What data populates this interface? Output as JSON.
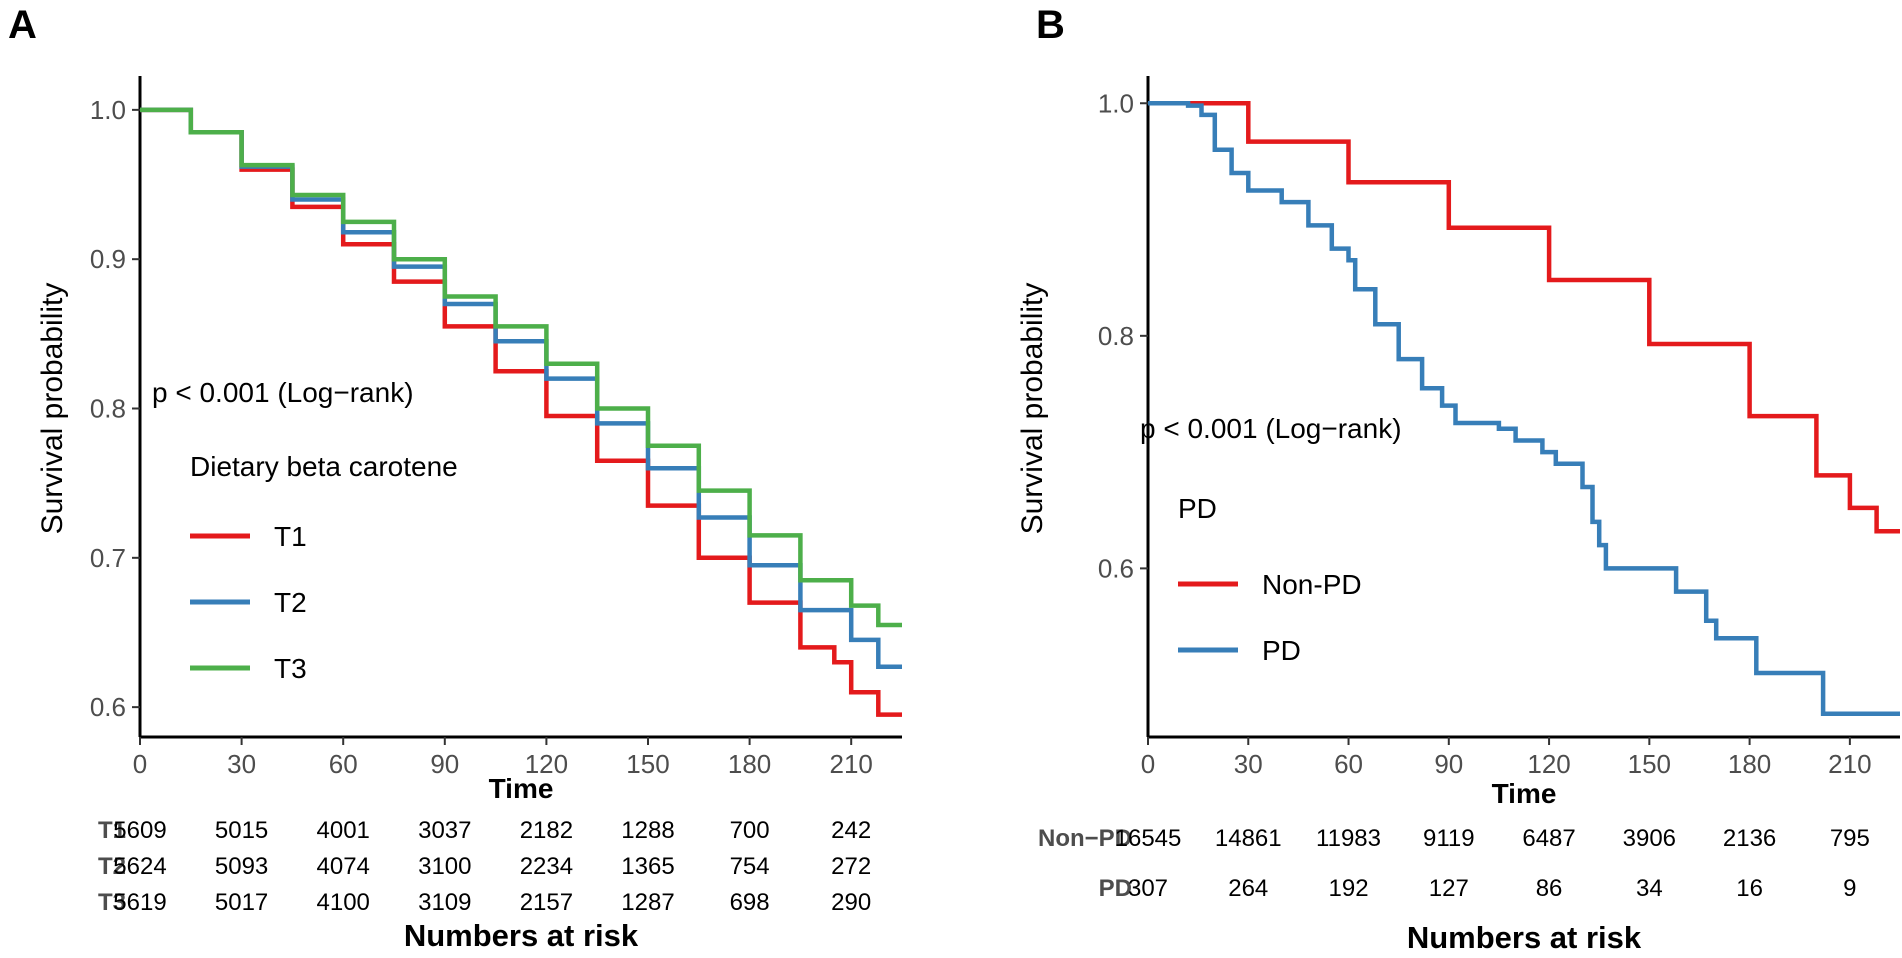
{
  "chart_data": [
    {
      "panel_label": "A",
      "type": "line",
      "subtype": "kaplan-meier",
      "ylabel": "Survival probability",
      "xlabel": "Time",
      "xlim": [
        0,
        225
      ],
      "ylim": [
        0.58,
        1.02
      ],
      "x_ticks": [
        0,
        30,
        60,
        90,
        120,
        150,
        180,
        210
      ],
      "y_ticks": [
        0.6,
        0.7,
        0.8,
        0.9,
        1.0
      ],
      "y_tick_labels": [
        "0.6",
        "0.7",
        "0.8",
        "0.9",
        "1.0"
      ],
      "grid": false,
      "annotation": "p < 0.001 (Log−rank)",
      "legend_title": "Dietary beta carotene",
      "legend_position": "inside-left",
      "series": [
        {
          "name": "T1",
          "color": "#e41a1c",
          "points": [
            [
              0,
              1.0
            ],
            [
              15,
              0.985
            ],
            [
              30,
              0.96
            ],
            [
              45,
              0.935
            ],
            [
              60,
              0.91
            ],
            [
              75,
              0.885
            ],
            [
              90,
              0.855
            ],
            [
              105,
              0.825
            ],
            [
              120,
              0.795
            ],
            [
              135,
              0.765
            ],
            [
              150,
              0.735
            ],
            [
              165,
              0.7
            ],
            [
              180,
              0.67
            ],
            [
              195,
              0.64
            ],
            [
              205,
              0.63
            ],
            [
              210,
              0.61
            ],
            [
              218,
              0.595
            ],
            [
              225,
              0.595
            ]
          ]
        },
        {
          "name": "T2",
          "color": "#377eb8",
          "points": [
            [
              0,
              1.0
            ],
            [
              15,
              0.985
            ],
            [
              30,
              0.962
            ],
            [
              45,
              0.94
            ],
            [
              60,
              0.918
            ],
            [
              75,
              0.895
            ],
            [
              90,
              0.87
            ],
            [
              105,
              0.845
            ],
            [
              120,
              0.82
            ],
            [
              135,
              0.79
            ],
            [
              150,
              0.76
            ],
            [
              165,
              0.727
            ],
            [
              180,
              0.695
            ],
            [
              195,
              0.665
            ],
            [
              210,
              0.645
            ],
            [
              218,
              0.627
            ],
            [
              225,
              0.627
            ]
          ]
        },
        {
          "name": "T3",
          "color": "#4daf4a",
          "points": [
            [
              0,
              1.0
            ],
            [
              15,
              0.985
            ],
            [
              30,
              0.963
            ],
            [
              45,
              0.943
            ],
            [
              60,
              0.925
            ],
            [
              75,
              0.9
            ],
            [
              90,
              0.875
            ],
            [
              105,
              0.855
            ],
            [
              120,
              0.83
            ],
            [
              135,
              0.8
            ],
            [
              150,
              0.775
            ],
            [
              165,
              0.745
            ],
            [
              180,
              0.715
            ],
            [
              195,
              0.685
            ],
            [
              210,
              0.668
            ],
            [
              218,
              0.655
            ],
            [
              225,
              0.655
            ]
          ]
        }
      ],
      "risk_table": {
        "title": "Numbers at risk",
        "rows": [
          {
            "label": "T1",
            "values": [
              "5609",
              "5015",
              "4001",
              "3037",
              "2182",
              "1288",
              "700",
              "242"
            ]
          },
          {
            "label": "T2",
            "values": [
              "5624",
              "5093",
              "4074",
              "3100",
              "2234",
              "1365",
              "754",
              "272"
            ]
          },
          {
            "label": "T3",
            "values": [
              "5619",
              "5017",
              "4100",
              "3109",
              "2157",
              "1287",
              "698",
              "290"
            ]
          }
        ]
      }
    },
    {
      "panel_label": "B",
      "type": "line",
      "subtype": "kaplan-meier",
      "ylabel": "Survival probability",
      "xlabel": "Time",
      "xlim": [
        0,
        225
      ],
      "ylim": [
        0.455,
        1.02
      ],
      "x_ticks": [
        0,
        30,
        60,
        90,
        120,
        150,
        180,
        210
      ],
      "y_ticks": [
        0.6,
        0.8,
        1.0
      ],
      "y_tick_labels": [
        "0.6",
        "0.8",
        "1.0"
      ],
      "grid": false,
      "annotation": "p < 0.001 (Log−rank)",
      "legend_title": "PD",
      "legend_position": "inside-left",
      "series": [
        {
          "name": "Non-PD",
          "color": "#e41a1c",
          "points": [
            [
              0,
              1.0
            ],
            [
              30,
              0.967
            ],
            [
              60,
              0.932
            ],
            [
              90,
              0.893
            ],
            [
              120,
              0.848
            ],
            [
              150,
              0.793
            ],
            [
              180,
              0.731
            ],
            [
              200,
              0.68
            ],
            [
              210,
              0.652
            ],
            [
              218,
              0.632
            ],
            [
              225,
              0.632
            ]
          ]
        },
        {
          "name": "PD",
          "color": "#377eb8",
          "points": [
            [
              0,
              1.0
            ],
            [
              12,
              0.998
            ],
            [
              16,
              0.99
            ],
            [
              20,
              0.96
            ],
            [
              25,
              0.94
            ],
            [
              30,
              0.925
            ],
            [
              40,
              0.915
            ],
            [
              48,
              0.895
            ],
            [
              55,
              0.875
            ],
            [
              60,
              0.865
            ],
            [
              62,
              0.84
            ],
            [
              68,
              0.81
            ],
            [
              75,
              0.78
            ],
            [
              82,
              0.755
            ],
            [
              88,
              0.74
            ],
            [
              92,
              0.725
            ],
            [
              105,
              0.72
            ],
            [
              110,
              0.71
            ],
            [
              118,
              0.7
            ],
            [
              122,
              0.69
            ],
            [
              130,
              0.67
            ],
            [
              133,
              0.64
            ],
            [
              135,
              0.62
            ],
            [
              137,
              0.6
            ],
            [
              155,
              0.6
            ],
            [
              158,
              0.58
            ],
            [
              165,
              0.58
            ],
            [
              167,
              0.555
            ],
            [
              170,
              0.54
            ],
            [
              180,
              0.54
            ],
            [
              182,
              0.51
            ],
            [
              200,
              0.51
            ],
            [
              202,
              0.475
            ],
            [
              225,
              0.475
            ]
          ]
        }
      ],
      "risk_table": {
        "title": "Numbers at risk",
        "rows": [
          {
            "label": "Non−PD",
            "values": [
              "16545",
              "14861",
              "11983",
              "9119",
              "6487",
              "3906",
              "2136",
              "795"
            ]
          },
          {
            "label": "PD",
            "values": [
              "307",
              "264",
              "192",
              "127",
              "86",
              "34",
              "16",
              "9"
            ]
          }
        ]
      }
    }
  ]
}
